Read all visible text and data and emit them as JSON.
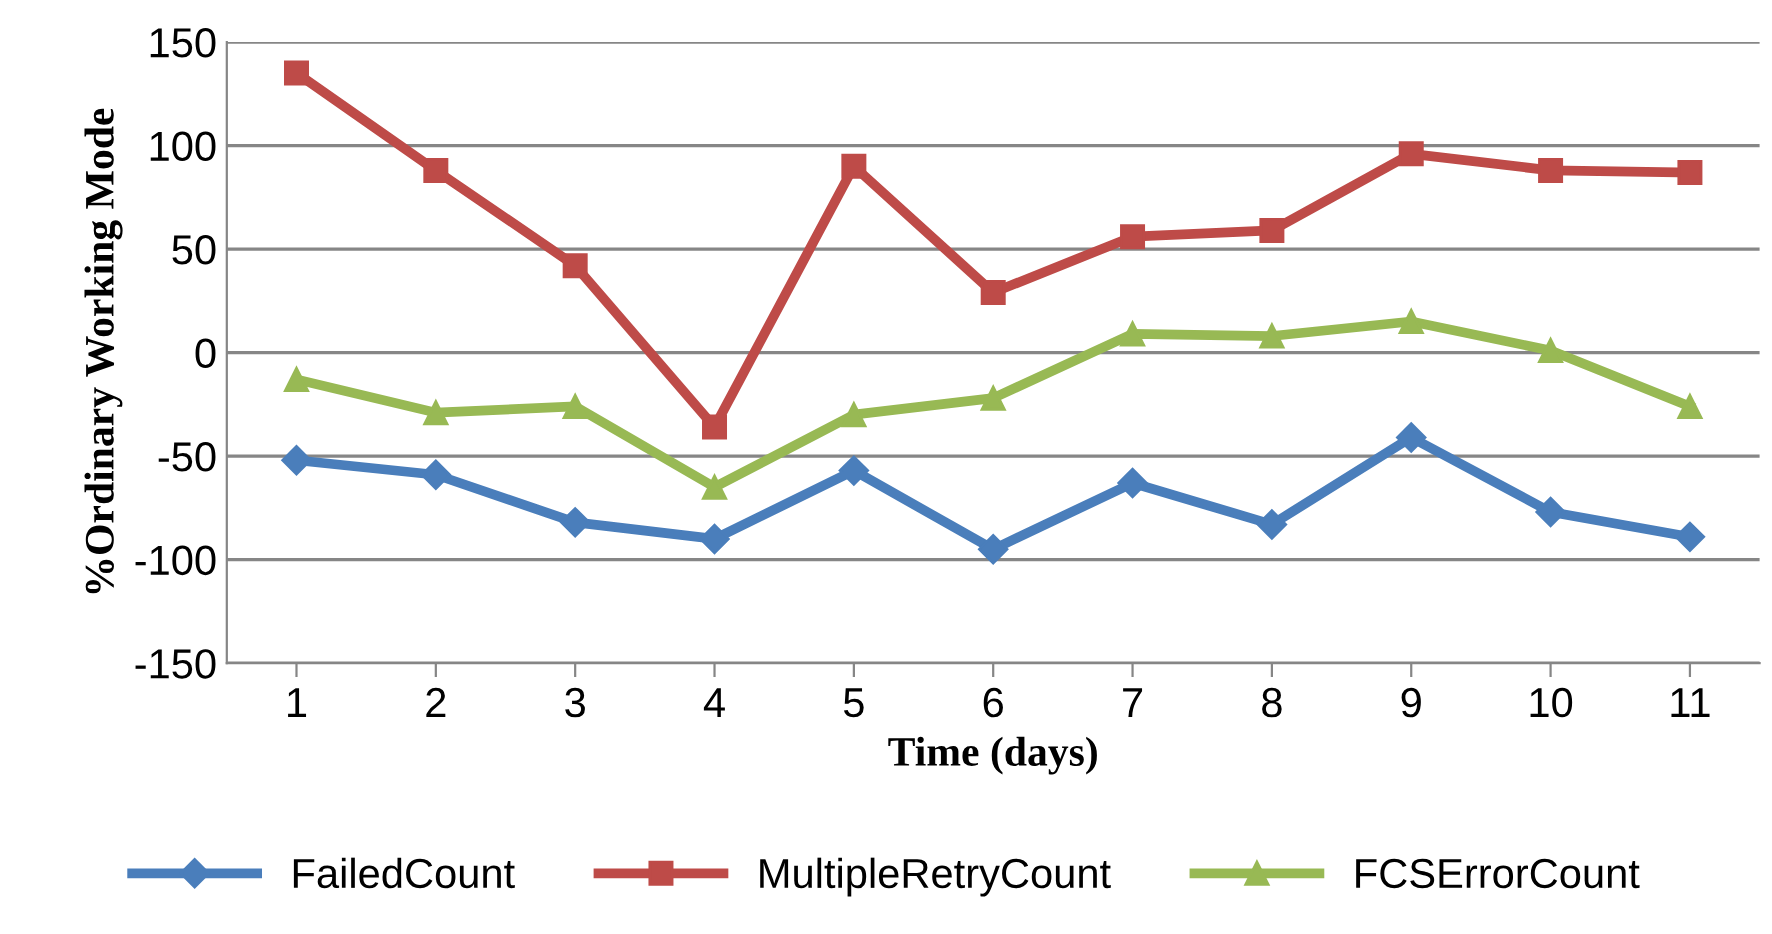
{
  "chart_data": {
    "type": "line",
    "xlabel": "Time (days)",
    "ylabel": "%Ordinary Working Mode",
    "categories": [
      "1",
      "2",
      "3",
      "4",
      "5",
      "6",
      "7",
      "8",
      "9",
      "10",
      "11"
    ],
    "series": [
      {
        "name": "FailedCount",
        "color": "#4a7ebb",
        "marker": "diamond",
        "values": [
          -52,
          -59,
          -82,
          -90,
          -57,
          -95,
          -63,
          -83,
          -41,
          -77,
          -89
        ]
      },
      {
        "name": "MultipleRetryCount",
        "color": "#be4b48",
        "marker": "square",
        "values": [
          135,
          88,
          42,
          -36,
          90,
          29,
          56,
          59,
          96,
          88,
          87
        ]
      },
      {
        "name": "FCSErrorCount",
        "color": "#98b954",
        "marker": "triangle",
        "values": [
          -13,
          -29,
          -26,
          -65,
          -30,
          -22,
          9,
          8,
          15,
          1,
          -26
        ]
      }
    ],
    "ylim": [
      -150,
      150
    ],
    "yticks": [
      -150,
      -100,
      -50,
      0,
      50,
      100,
      150
    ],
    "grid": "y",
    "legend": "bottom",
    "line_style": "solid"
  }
}
